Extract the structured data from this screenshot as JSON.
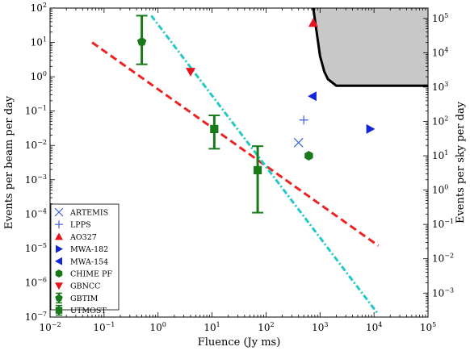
{
  "chart_data": {
    "type": "scatter",
    "xlabel": "Fluence (Jy ms)",
    "ylabel": "Events per beam per day",
    "y2label": "Events per sky per day",
    "xscale": "log",
    "yscale": "log",
    "xlim": [
      0.01,
      100000
    ],
    "ylim": [
      1e-07,
      100
    ],
    "y2lim": [
      0.0002,
      200000
    ],
    "grid": false,
    "legend_position": "lower-left",
    "x_ticks": [
      {
        "value": 0.01,
        "label": "10^-2"
      },
      {
        "value": 0.1,
        "label": "10^-1"
      },
      {
        "value": 1,
        "label": "10^0"
      },
      {
        "value": 10,
        "label": "10^1"
      },
      {
        "value": 100,
        "label": "10^2"
      },
      {
        "value": 1000,
        "label": "10^3"
      },
      {
        "value": 10000,
        "label": "10^4"
      },
      {
        "value": 100000,
        "label": "10^5"
      }
    ],
    "y_ticks": [
      {
        "value": 1e-07,
        "label": "10^-7"
      },
      {
        "value": 1e-06,
        "label": "10^-6"
      },
      {
        "value": 1e-05,
        "label": "10^-5"
      },
      {
        "value": 0.0001,
        "label": "10^-4"
      },
      {
        "value": 0.001,
        "label": "10^-3"
      },
      {
        "value": 0.01,
        "label": "10^-2"
      },
      {
        "value": 0.1,
        "label": "10^-1"
      },
      {
        "value": 1,
        "label": "10^0"
      },
      {
        "value": 10,
        "label": "10^1"
      },
      {
        "value": 100,
        "label": "10^2"
      }
    ],
    "y2_ticks": [
      {
        "value": 0.001,
        "label": "10^-3"
      },
      {
        "value": 0.01,
        "label": "10^-2"
      },
      {
        "value": 0.1,
        "label": "10^-1"
      },
      {
        "value": 1,
        "label": "10^0"
      },
      {
        "value": 10,
        "label": "10^1"
      },
      {
        "value": 100,
        "label": "10^2"
      },
      {
        "value": 1000,
        "label": "10^3"
      },
      {
        "value": 10000,
        "label": "10^4"
      },
      {
        "value": 100000,
        "label": "10^5"
      }
    ],
    "series": [
      {
        "name": "ARTEMIS",
        "marker": "x",
        "color": "#3b5fd9",
        "points": [
          {
            "x": 400,
            "y": 0.012
          }
        ]
      },
      {
        "name": "LPPS",
        "marker": "plus",
        "color": "#3b5fd9",
        "points": [
          {
            "x": 500,
            "y": 0.055
          }
        ]
      },
      {
        "name": "AO327",
        "marker": "triangle-up",
        "color": "#e8141c",
        "points": [
          {
            "x": 750,
            "y": 37
          }
        ]
      },
      {
        "name": "MWA-182",
        "marker": "triangle-right",
        "color": "#1424d8",
        "points": [
          {
            "x": 8500,
            "y": 0.03
          }
        ]
      },
      {
        "name": "MWA-154",
        "marker": "triangle-left",
        "color": "#1424d8",
        "points": [
          {
            "x": 730,
            "y": 0.27
          }
        ]
      },
      {
        "name": "CHIME PF",
        "marker": "hexagon",
        "color": "#1a7a1a",
        "points": [
          {
            "x": 620,
            "y": 0.005
          }
        ]
      },
      {
        "name": "GBNCC",
        "marker": "triangle-down",
        "color": "#e8141c",
        "points": [
          {
            "x": 4,
            "y": 1.4
          }
        ]
      },
      {
        "name": "GBTIM",
        "marker": "pentagon",
        "color": "#1a7a1a",
        "points": [
          {
            "x": 0.5,
            "y": 10.5,
            "y_low": 2.3,
            "y_high": 60
          }
        ]
      },
      {
        "name": "UTMOST",
        "marker": "square",
        "color": "#1a7a1a",
        "points": [
          {
            "x": 11,
            "y": 0.03,
            "y_low": 0.008,
            "y_high": 0.075
          },
          {
            "x": 70,
            "y": 0.0019,
            "y_low": 0.00011,
            "y_high": 0.0095
          }
        ]
      }
    ],
    "lines": [
      {
        "style": "dashed",
        "color": "#ee2222",
        "points": [
          {
            "x": 0.06,
            "y": 10
          },
          {
            "x": 12000,
            "y": 1.2e-05
          }
        ]
      },
      {
        "style": "dash-dot",
        "color": "#22c8c8",
        "points": [
          {
            "x": 0.75,
            "y": 60
          },
          {
            "x": 12000,
            "y": 1.2e-07
          }
        ]
      }
    ],
    "shaded_region": {
      "color": "#c8c8c8",
      "boundary": [
        {
          "x": 750,
          "y": 100
        },
        {
          "x": 1000,
          "y": 4
        },
        {
          "x": 1200,
          "y": 1.4
        },
        {
          "x": 1400,
          "y": 0.85
        },
        {
          "x": 2000,
          "y": 0.55
        },
        {
          "x": 100000,
          "y": 0.55
        }
      ]
    }
  }
}
